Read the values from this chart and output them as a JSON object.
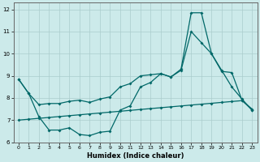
{
  "xlabel": "Humidex (Indice chaleur)",
  "bg_color": "#cceaea",
  "grid_color": "#aacccc",
  "line_color": "#006868",
  "xlim": [
    -0.5,
    23.5
  ],
  "ylim": [
    6,
    12.3
  ],
  "yticks": [
    6,
    7,
    8,
    9,
    10,
    11,
    12
  ],
  "xticks": [
    0,
    1,
    2,
    3,
    4,
    5,
    6,
    7,
    8,
    9,
    10,
    11,
    12,
    13,
    14,
    15,
    16,
    17,
    18,
    19,
    20,
    21,
    22,
    23
  ],
  "series1_x": [
    0,
    1,
    2,
    3,
    4,
    5,
    6,
    7,
    8,
    9,
    10,
    11,
    12,
    13,
    14,
    15,
    16,
    17,
    18,
    19,
    20,
    21,
    22,
    23
  ],
  "series1_y": [
    8.85,
    8.2,
    7.15,
    6.55,
    6.55,
    6.65,
    6.35,
    6.3,
    6.45,
    6.5,
    7.45,
    7.65,
    8.5,
    8.7,
    9.1,
    8.95,
    9.3,
    11.85,
    11.85,
    10.0,
    9.2,
    9.15,
    7.9,
    7.45
  ],
  "series2_x": [
    0,
    1,
    2,
    3,
    4,
    5,
    6,
    7,
    8,
    9,
    10,
    11,
    12,
    13,
    14,
    15,
    16,
    17,
    18,
    19,
    20,
    21,
    22,
    23
  ],
  "series2_y": [
    7.0,
    7.04,
    7.08,
    7.12,
    7.16,
    7.2,
    7.24,
    7.28,
    7.32,
    7.36,
    7.4,
    7.44,
    7.48,
    7.52,
    7.56,
    7.6,
    7.64,
    7.68,
    7.72,
    7.76,
    7.8,
    7.84,
    7.88,
    7.5
  ],
  "series3_x": [
    0,
    1,
    2,
    3,
    4,
    5,
    6,
    7,
    8,
    9,
    10,
    11,
    12,
    13,
    14,
    15,
    16,
    17,
    18,
    19,
    20,
    21,
    22,
    23
  ],
  "series3_y": [
    8.85,
    8.2,
    7.7,
    7.75,
    7.75,
    7.85,
    7.9,
    7.8,
    7.95,
    8.05,
    8.5,
    8.65,
    9.0,
    9.05,
    9.1,
    8.95,
    9.25,
    11.0,
    10.5,
    10.0,
    9.25,
    8.5,
    7.95,
    7.45
  ]
}
